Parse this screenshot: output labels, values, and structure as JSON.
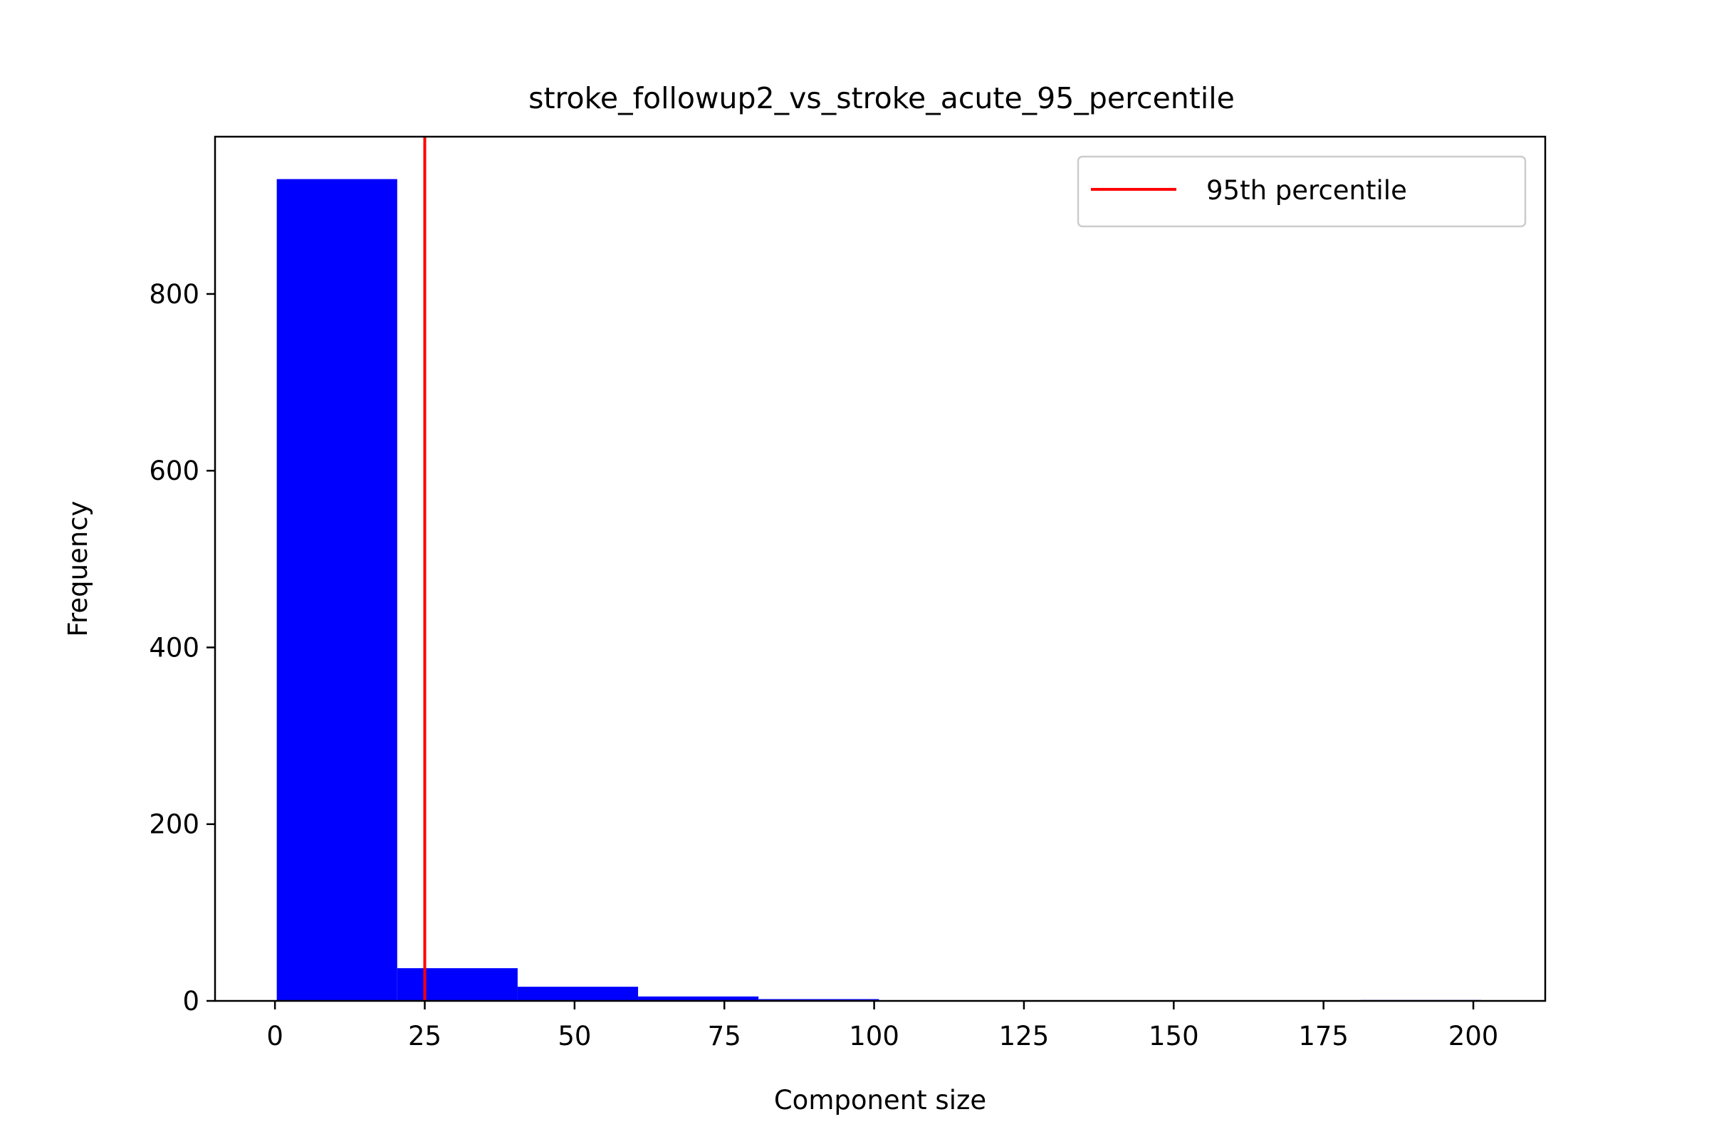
{
  "chart_data": {
    "type": "bar",
    "title": "stroke_followup2_vs_stroke_acute_95_percentile",
    "xlabel": "Component size",
    "ylabel": "Frequency",
    "xlim": [
      -10,
      212
    ],
    "ylim": [
      0,
      978
    ],
    "x_ticks": [
      0,
      25,
      50,
      75,
      100,
      125,
      150,
      175,
      200
    ],
    "y_ticks": [
      0,
      200,
      400,
      600,
      800
    ],
    "bins": [
      {
        "start": 0.3,
        "end": 20.4,
        "value": 930
      },
      {
        "start": 20.4,
        "end": 40.5,
        "value": 37
      },
      {
        "start": 40.5,
        "end": 60.6,
        "value": 16
      },
      {
        "start": 60.6,
        "end": 80.7,
        "value": 5
      },
      {
        "start": 80.7,
        "end": 100.8,
        "value": 2
      },
      {
        "start": 100.8,
        "end": 120.9,
        "value": 0
      },
      {
        "start": 120.9,
        "end": 141.0,
        "value": 0
      },
      {
        "start": 141.0,
        "end": 161.1,
        "value": 0
      },
      {
        "start": 161.1,
        "end": 181.2,
        "value": 0
      },
      {
        "start": 181.2,
        "end": 201.3,
        "value": 1
      }
    ],
    "bar_color": "#0000ff",
    "vline": {
      "x": 25,
      "label": "95th percentile",
      "color": "#ff0000"
    },
    "legend": {
      "position": "top-right",
      "entries": [
        "95th percentile"
      ]
    },
    "grid": false
  }
}
